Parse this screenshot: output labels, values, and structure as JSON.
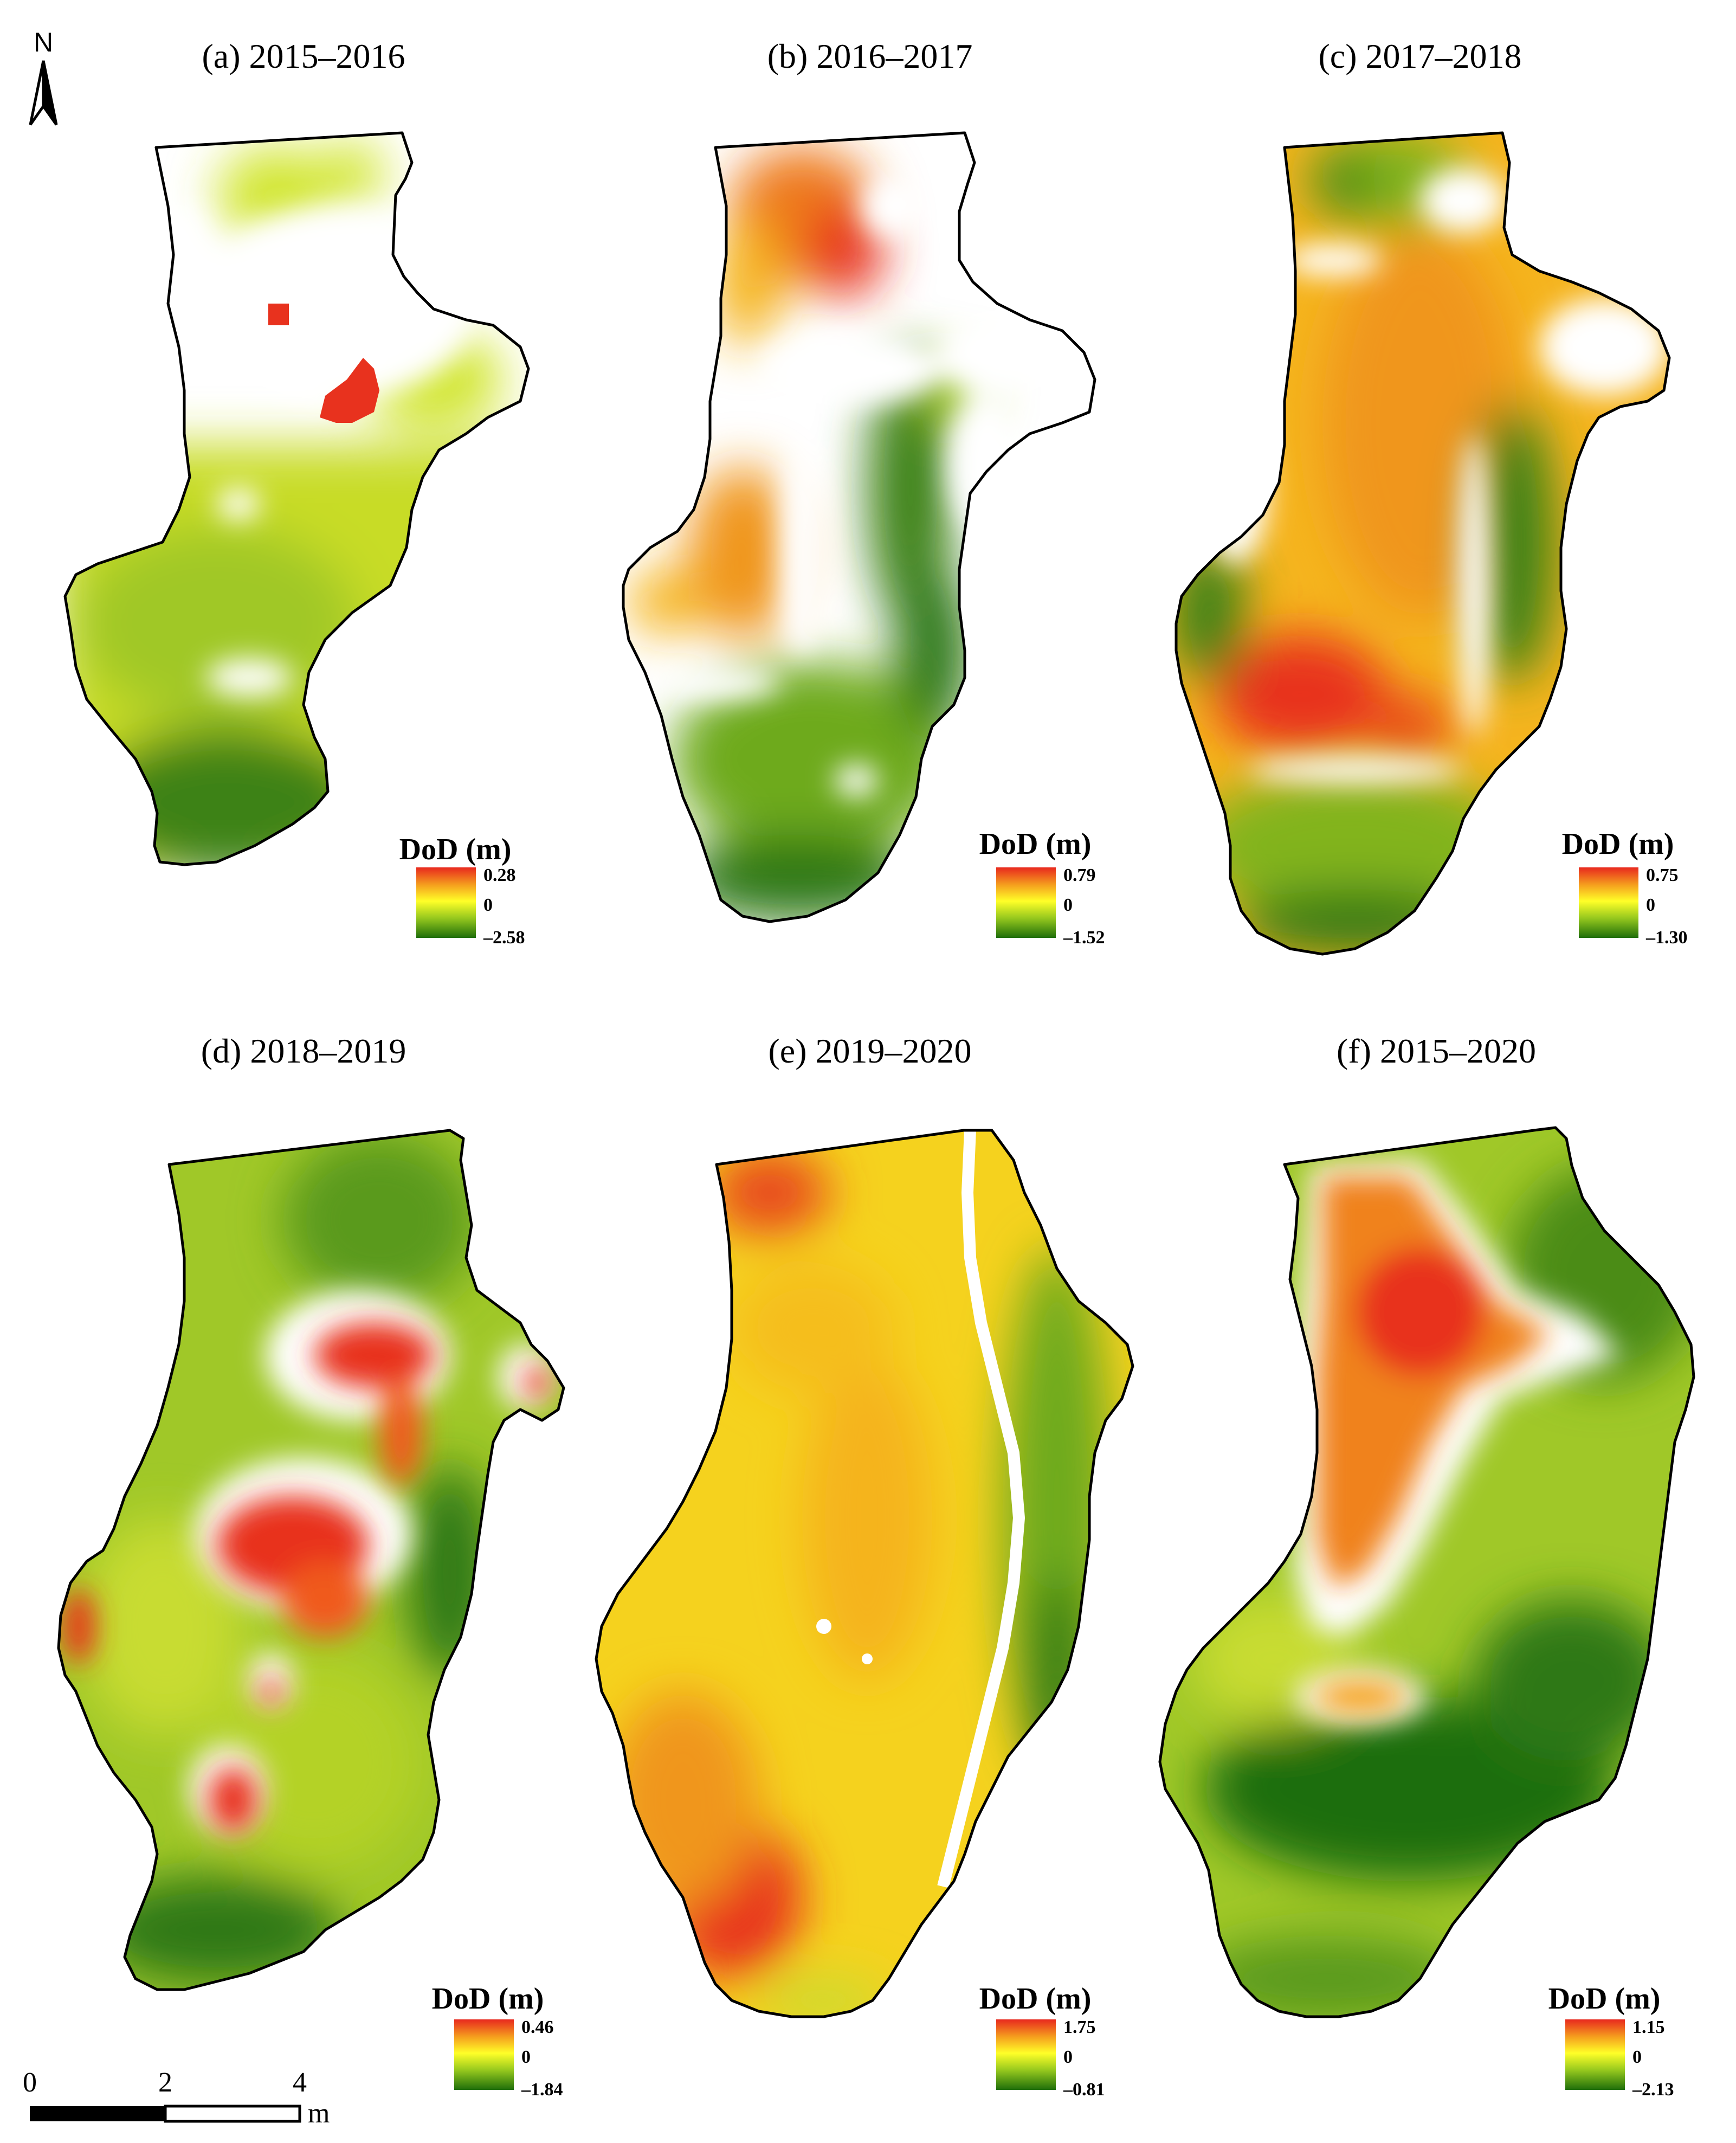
{
  "north_arrow": {
    "label": "N"
  },
  "legend_title": "DoD (m)",
  "panels": [
    {
      "id": "a",
      "title": "(a) 2015–2016",
      "legend": {
        "max": "0.28",
        "zero": "0",
        "min": "–2.58"
      }
    },
    {
      "id": "b",
      "title": "(b) 2016–2017",
      "legend": {
        "max": "0.79",
        "zero": "0",
        "min": "–1.52"
      }
    },
    {
      "id": "c",
      "title": "(c) 2017–2018",
      "legend": {
        "max": "0.75",
        "zero": "0",
        "min": "–1.30"
      }
    },
    {
      "id": "d",
      "title": "(d) 2018–2019",
      "legend": {
        "max": "0.46",
        "zero": "0",
        "min": "–1.84"
      }
    },
    {
      "id": "e",
      "title": "(e) 2019–2020",
      "legend": {
        "max": "1.75",
        "zero": "0",
        "min": "–0.81"
      }
    },
    {
      "id": "f",
      "title": "(f) 2015–2020",
      "legend": {
        "max": "1.15",
        "zero": "0",
        "min": "–2.13"
      }
    }
  ],
  "scale_bar": {
    "ticks": [
      "0",
      "2",
      "4"
    ],
    "unit": "m"
  },
  "colors": {
    "high": "#e8281e",
    "mid_high": "#f5a01e",
    "zero": "#ffff28",
    "mid_low": "#96c81e",
    "low": "#1e6e0a",
    "nodata": "#ffffff"
  }
}
